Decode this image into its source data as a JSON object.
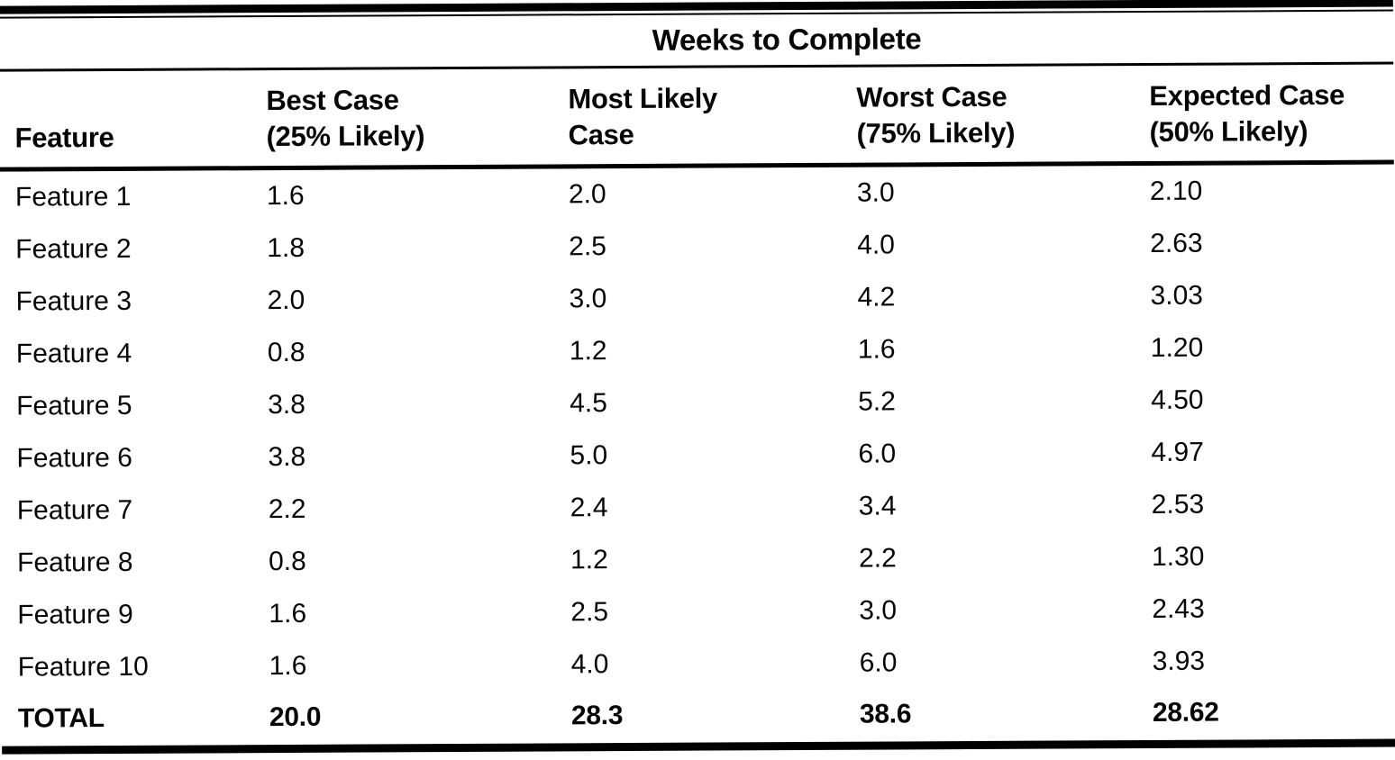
{
  "table": {
    "spanner_title": "Weeks to Complete",
    "columns": [
      {
        "line1": "",
        "line2": "Feature"
      },
      {
        "line1": "Best Case",
        "line2": "(25% Likely)"
      },
      {
        "line1": "Most Likely",
        "line2": "Case"
      },
      {
        "line1": "Worst Case",
        "line2": "(75% Likely)"
      },
      {
        "line1": "Expected Case",
        "line2": "(50% Likely)"
      }
    ],
    "rows": [
      [
        "Feature 1",
        "1.6",
        "2.0",
        "3.0",
        "2.10"
      ],
      [
        "Feature 2",
        "1.8",
        "2.5",
        "4.0",
        "2.63"
      ],
      [
        "Feature 3",
        "2.0",
        "3.0",
        "4.2",
        "3.03"
      ],
      [
        "Feature 4",
        "0.8",
        "1.2",
        "1.6",
        "1.20"
      ],
      [
        "Feature 5",
        "3.8",
        "4.5",
        "5.2",
        "4.50"
      ],
      [
        "Feature 6",
        "3.8",
        "5.0",
        "6.0",
        "4.97"
      ],
      [
        "Feature 7",
        "2.2",
        "2.4",
        "3.4",
        "2.53"
      ],
      [
        "Feature 8",
        "0.8",
        "1.2",
        "2.2",
        "1.30"
      ],
      [
        "Feature 9",
        "1.6",
        "2.5",
        "3.0",
        "2.43"
      ],
      [
        "Feature 10",
        "1.6",
        "4.0",
        "6.0",
        "3.93"
      ]
    ],
    "total": [
      "TOTAL",
      "20.0",
      "28.3",
      "38.6",
      "28.62"
    ]
  },
  "chart_data": {
    "type": "table",
    "title": "Weeks to Complete",
    "columns": [
      "Feature",
      "Best Case (25% Likely)",
      "Most Likely Case",
      "Worst Case (75% Likely)",
      "Expected Case (50% Likely)"
    ],
    "rows": [
      [
        "Feature 1",
        1.6,
        2.0,
        3.0,
        2.1
      ],
      [
        "Feature 2",
        1.8,
        2.5,
        4.0,
        2.63
      ],
      [
        "Feature 3",
        2.0,
        3.0,
        4.2,
        3.03
      ],
      [
        "Feature 4",
        0.8,
        1.2,
        1.6,
        1.2
      ],
      [
        "Feature 5",
        3.8,
        4.5,
        5.2,
        4.5
      ],
      [
        "Feature 6",
        3.8,
        5.0,
        6.0,
        4.97
      ],
      [
        "Feature 7",
        2.2,
        2.4,
        3.4,
        2.53
      ],
      [
        "Feature 8",
        0.8,
        1.2,
        2.2,
        1.3
      ],
      [
        "Feature 9",
        1.6,
        2.5,
        3.0,
        2.43
      ],
      [
        "Feature 10",
        1.6,
        4.0,
        6.0,
        3.93
      ]
    ],
    "total_row": [
      "TOTAL",
      20.0,
      28.3,
      38.6,
      28.62
    ],
    "layout_hints": {
      "spanner_header_over_data_columns": "Weeks to Complete",
      "rules": "thick top double rule, thin rule under spanner, medium rule under headers, thick bottom rule",
      "text_color": "#000000",
      "background": "#ffffff"
    }
  }
}
